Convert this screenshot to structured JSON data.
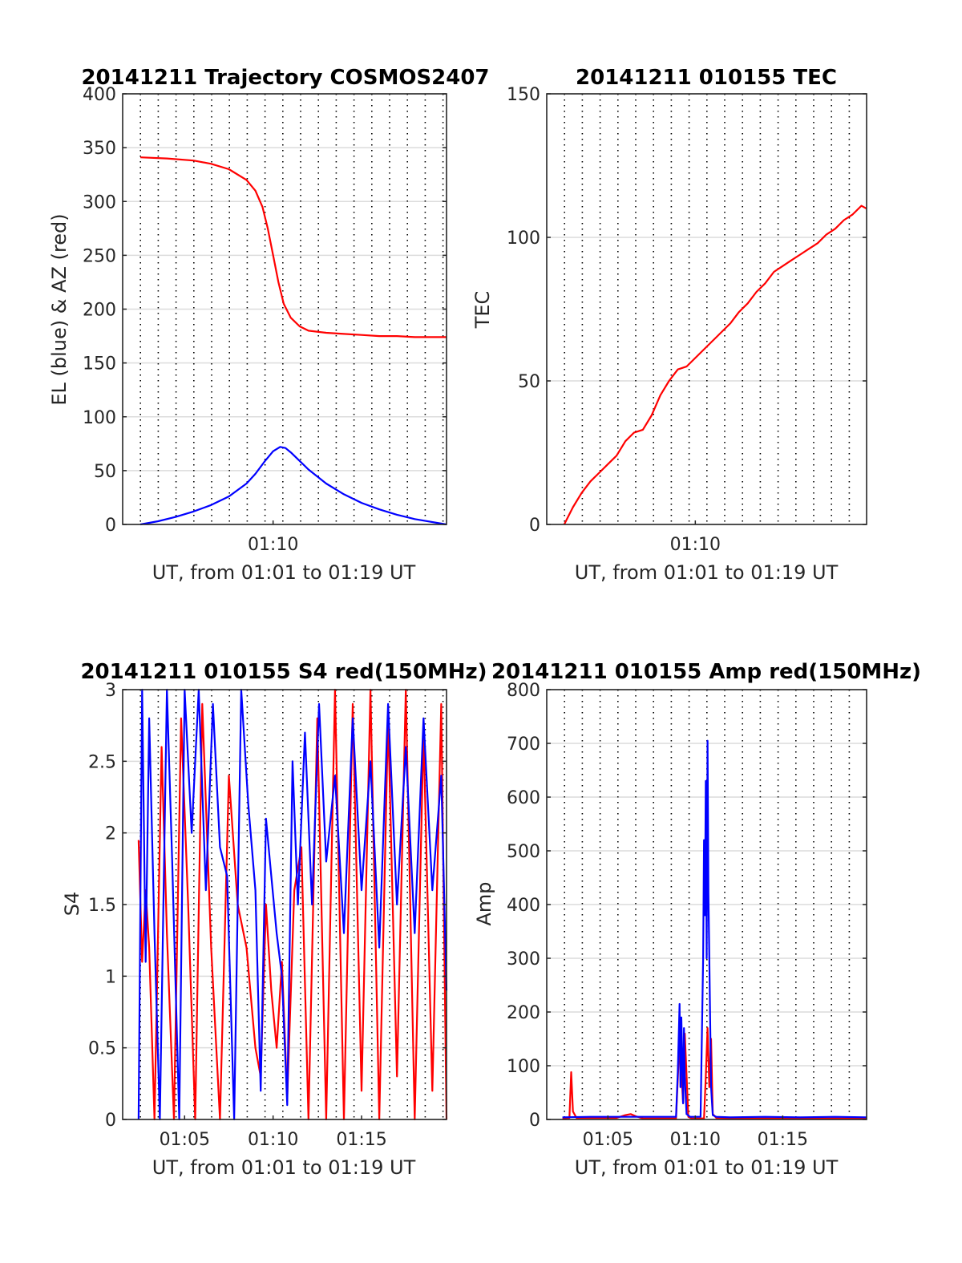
{
  "figure": {
    "background": "#ffffff"
  },
  "chart_data": [
    {
      "type": "line",
      "title": "20141211 Trajectory COSMOS2407",
      "xlabel": "UT, from 01:01 to 01:19 UT",
      "ylabel": "EL (blue) & AZ (red)",
      "xlim_minutes": [
        61.5,
        79.8
      ],
      "ylim": [
        0,
        400
      ],
      "yticks": [
        0,
        50,
        100,
        150,
        200,
        250,
        300,
        350,
        400
      ],
      "xticks": [
        {
          "value": 70,
          "label": "01:10"
        }
      ],
      "grid": "horizontal solid gray, vertical dotted black",
      "series": [
        {
          "color": "#ff0000",
          "x": [
            62.5,
            64.0,
            65.5,
            66.5,
            67.5,
            68.5,
            69.0,
            69.4,
            69.7,
            70.0,
            70.3,
            70.6,
            71.0,
            71.5,
            72.0,
            73.0,
            74.0,
            75.0,
            76.0,
            77.0,
            78.0,
            79.8
          ],
          "y": [
            341,
            340,
            338,
            335,
            330,
            320,
            310,
            295,
            275,
            250,
            225,
            205,
            192,
            184,
            180,
            178,
            177,
            176,
            175,
            175,
            174,
            174
          ]
        },
        {
          "color": "#0000ff",
          "x": [
            62.5,
            63.5,
            64.5,
            65.5,
            66.5,
            67.5,
            68.5,
            69.0,
            69.5,
            70.0,
            70.4,
            70.7,
            71.0,
            71.5,
            72.0,
            73.0,
            74.0,
            75.0,
            76.0,
            77.0,
            78.0,
            79.8
          ],
          "y": [
            0,
            3,
            7,
            12,
            18,
            26,
            38,
            47,
            58,
            68,
            72,
            71,
            67,
            59,
            51,
            38,
            28,
            20,
            14,
            9,
            5,
            0
          ]
        }
      ]
    },
    {
      "type": "line",
      "title": "20141211 010155 TEC",
      "xlabel": "UT, from 01:01 to 01:19 UT",
      "ylabel": "TEC",
      "xlim_minutes": [
        61.5,
        79.8
      ],
      "ylim": [
        0,
        150
      ],
      "yticks": [
        0,
        50,
        100,
        150
      ],
      "xticks": [
        {
          "value": 70,
          "label": "01:10"
        }
      ],
      "grid": "horizontal solid gray, vertical dotted black",
      "series": [
        {
          "color": "#ff0000",
          "x": [
            62.5,
            63.0,
            63.5,
            64.0,
            64.5,
            65.0,
            65.5,
            66.0,
            66.5,
            67.0,
            67.5,
            68.0,
            68.5,
            69.0,
            69.5,
            70.0,
            70.5,
            71.0,
            71.5,
            72.0,
            72.5,
            73.0,
            73.5,
            74.0,
            74.5,
            75.0,
            75.5,
            76.0,
            76.5,
            77.0,
            77.5,
            78.0,
            78.5,
            79.0,
            79.5,
            79.8
          ],
          "y": [
            0,
            6,
            11,
            15,
            18,
            21,
            24,
            29,
            32,
            33,
            38,
            45,
            50,
            54,
            55,
            58,
            61,
            64,
            67,
            70,
            74,
            77,
            81,
            84,
            88,
            90,
            92,
            94,
            96,
            98,
            101,
            103,
            106,
            108,
            111,
            110
          ]
        }
      ]
    },
    {
      "type": "line",
      "title": "20141211 010155 S4 red(150MHz)",
      "xlabel": "UT, from 01:01 to 01:19 UT",
      "ylabel": "S4",
      "xlim_minutes": [
        61.5,
        79.8
      ],
      "ylim": [
        0,
        3
      ],
      "yticks": [
        0,
        0.5,
        1,
        1.5,
        2,
        2.5,
        3
      ],
      "xticks": [
        {
          "value": 65,
          "label": "01:05"
        },
        {
          "value": 70,
          "label": "01:10"
        },
        {
          "value": 75,
          "label": "01:15"
        }
      ],
      "grid": "horizontal solid gray, vertical dotted black",
      "series": [
        {
          "color": "#ff0000",
          "x": [
            62.4,
            62.6,
            62.8,
            63.0,
            63.3,
            63.7,
            64.0,
            64.4,
            64.8,
            65.2,
            65.6,
            66.0,
            66.5,
            67.0,
            67.5,
            68.0,
            68.5,
            69.0,
            69.3,
            69.6,
            69.9,
            70.2,
            70.5,
            70.8,
            71.2,
            71.6,
            72.0,
            72.5,
            73.0,
            73.5,
            74.0,
            74.5,
            75.0,
            75.5,
            76.0,
            76.5,
            77.0,
            77.5,
            78.0,
            78.5,
            79.0,
            79.5,
            79.8
          ],
          "y": [
            1.95,
            1.1,
            1.6,
            1.2,
            0,
            2.6,
            1.3,
            0,
            2.8,
            1.5,
            0,
            2.9,
            1.2,
            0,
            2.4,
            1.5,
            1.2,
            0.5,
            0.3,
            1.5,
            0.9,
            0.5,
            1.1,
            0.15,
            1.6,
            1.9,
            0,
            2.8,
            0,
            3.0,
            0,
            2.9,
            0.2,
            3.0,
            0,
            2.8,
            0.3,
            3.0,
            0,
            2.7,
            0.2,
            2.9,
            0
          ]
        },
        {
          "color": "#0000ff",
          "x": [
            62.4,
            62.6,
            62.8,
            63.0,
            63.3,
            63.6,
            64.0,
            64.3,
            64.7,
            65.0,
            65.4,
            65.8,
            66.2,
            66.6,
            67.0,
            67.4,
            67.8,
            68.2,
            68.6,
            69.0,
            69.3,
            69.6,
            69.9,
            70.2,
            70.5,
            70.8,
            71.1,
            71.4,
            71.8,
            72.2,
            72.6,
            73.0,
            73.5,
            74.0,
            74.5,
            75.0,
            75.5,
            76.0,
            76.5,
            77.0,
            77.5,
            78.0,
            78.5,
            79.0,
            79.5,
            79.8
          ],
          "y": [
            0,
            3.0,
            1.1,
            2.8,
            1.3,
            0,
            3.0,
            1.8,
            0,
            3.0,
            2.0,
            3.0,
            1.6,
            2.9,
            1.9,
            1.7,
            0,
            3.0,
            2.2,
            1.6,
            0.2,
            2.1,
            1.7,
            1.3,
            1.0,
            0.1,
            2.5,
            1.5,
            2.7,
            1.5,
            2.9,
            1.8,
            2.4,
            1.3,
            2.8,
            1.6,
            2.5,
            1.2,
            2.9,
            1.5,
            2.6,
            1.3,
            2.8,
            1.6,
            2.4,
            0.9
          ]
        }
      ]
    },
    {
      "type": "line",
      "title": "20141211 010155 Amp red(150MHz)",
      "xlabel": "UT, from 01:01 to 01:19 UT",
      "ylabel": "Amp",
      "xlim_minutes": [
        61.5,
        79.8
      ],
      "ylim": [
        0,
        800
      ],
      "yticks": [
        0,
        100,
        200,
        300,
        400,
        500,
        600,
        700,
        800
      ],
      "xticks": [
        {
          "value": 65,
          "label": "01:05"
        },
        {
          "value": 70,
          "label": "01:10"
        },
        {
          "value": 75,
          "label": "01:15"
        }
      ],
      "grid": "horizontal solid gray, vertical dotted black",
      "series": [
        {
          "color": "#ff0000",
          "x": [
            62.4,
            62.8,
            62.9,
            63.0,
            63.2,
            65.5,
            66.0,
            66.3,
            66.6,
            67.0,
            68.9,
            69.1,
            69.3,
            69.4,
            69.6,
            69.8,
            70.5,
            70.6,
            70.7,
            70.8,
            70.9,
            71.0,
            71.2,
            72.0,
            79.8
          ],
          "y": [
            2,
            3,
            88,
            15,
            3,
            3,
            8,
            10,
            6,
            2,
            2,
            150,
            30,
            160,
            5,
            2,
            2,
            80,
            170,
            60,
            150,
            10,
            3,
            2,
            2
          ]
        },
        {
          "color": "#0000ff",
          "x": [
            62.4,
            64.0,
            66.0,
            68.0,
            68.9,
            69.0,
            69.1,
            69.15,
            69.2,
            69.3,
            69.35,
            69.4,
            69.5,
            69.7,
            70.3,
            70.45,
            70.5,
            70.55,
            70.6,
            70.65,
            70.7,
            70.75,
            70.8,
            70.9,
            71.0,
            71.2,
            72.0,
            74.0,
            76.0,
            78.0,
            79.8
          ],
          "y": [
            4,
            5,
            5,
            5,
            5,
            90,
            215,
            60,
            190,
            30,
            170,
            80,
            10,
            5,
            5,
            300,
            520,
            380,
            630,
            300,
            705,
            420,
            300,
            60,
            8,
            5,
            4,
            5,
            4,
            5,
            4
          ]
        }
      ]
    }
  ]
}
